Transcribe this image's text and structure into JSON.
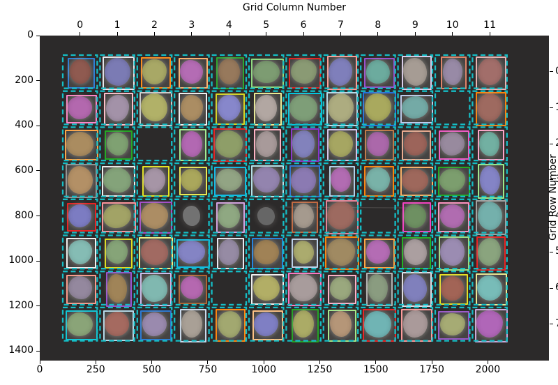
{
  "chart_data": {
    "type": "heatmap",
    "description": "Photograph of a seed packet board: 8 rows x 12 columns of seeds on a dark background. Each detected seed is tinted with a mask color and outlined with a bounding-box color; a cyan dashed grid marks the cells.",
    "top_axis": {
      "label": "Grid Column Number",
      "ticks": [
        0,
        1,
        2,
        3,
        4,
        5,
        6,
        7,
        8,
        9,
        10,
        11
      ]
    },
    "right_axis": {
      "label": "Grid Row Number",
      "ticks": [
        0,
        1,
        2,
        3,
        4,
        5,
        6,
        7
      ]
    },
    "left_axis": {
      "ticks": [
        0,
        200,
        400,
        600,
        800,
        1000,
        1200,
        1400
      ]
    },
    "bottom_axis": {
      "ticks": [
        0,
        250,
        500,
        750,
        1000,
        1250,
        1500,
        1750,
        2000
      ]
    },
    "n_rows": 8,
    "n_cols": 12,
    "image_bg": "#2c2a2a",
    "grid_line_color": "#15bdc5",
    "cells": [
      [
        [
          "#8f5a50",
          "#2f7fd6"
        ],
        [
          "#7b7bb4",
          "#e8e8ee"
        ],
        [
          "#a8a866",
          "#ff8c1a"
        ],
        [
          "#b46cb4",
          "#ffb26e"
        ],
        [
          "#97795c",
          "#2ea82e"
        ],
        [
          "#7d9c72",
          "#8fdc7f"
        ],
        [
          "#8a9a74",
          "#e42222"
        ],
        [
          "#7f7fbb",
          "#ff9e96"
        ],
        [
          "#6cab9e",
          "#9a4fd0"
        ],
        [
          "#a69c94",
          "#ddd0ee"
        ],
        [
          "#988aa6",
          "#e08468"
        ],
        [
          "#a26e6a",
          "#eab4b4"
        ]
      ],
      [
        [
          "#b368ae",
          "#ff85c8"
        ],
        [
          "#a392a8",
          "#ffc0cc"
        ],
        [
          "#b1b168",
          "#cccccc"
        ],
        [
          "#ab8d63",
          "#f2f2f2"
        ],
        [
          "#8787cb",
          "#d6d622"
        ],
        [
          "#b2a7a2",
          "#ecec94"
        ],
        [
          "#7e9e78",
          "#00c8e0"
        ],
        [
          "#adac80",
          "#b6dcec"
        ],
        [
          "#a9a95e",
          "#2472dc"
        ],
        [
          "#74aaa6",
          "#bcccee"
        ],
        null,
        [
          "#9e6a60",
          "#ff8408"
        ]
      ],
      [
        [
          "#aa8c60",
          "#ffa646"
        ],
        [
          "#7fa172",
          "#24a824"
        ],
        null,
        [
          "#b268b2",
          "#a4ec92"
        ],
        [
          "#8e9e68",
          "#e42424"
        ],
        [
          "#a89a9a",
          "#ffb2c4"
        ],
        [
          "#8282bc",
          "#8a35cc"
        ],
        [
          "#a6a662",
          "#d4c4ec"
        ],
        [
          "#ab68aa",
          "#c07a48"
        ],
        [
          "#9c645a",
          "#ecac90"
        ],
        [
          "#988a9e",
          "#f25cc6"
        ],
        [
          "#72b0a2",
          "#ffa4ca"
        ]
      ],
      [
        [
          "#b39066",
          "#939393"
        ],
        [
          "#84a37a",
          "#f0f0f0"
        ],
        [
          "#a695a6",
          "#e6e622"
        ],
        [
          "#aaa75c",
          "#eaea52"
        ],
        [
          "#92a484",
          "#10bce8"
        ],
        [
          "#9384ae",
          "#b4e2ea"
        ],
        [
          "#8b7ab2",
          "#3474d2"
        ],
        [
          "#b26cb2",
          "#b2d2ea"
        ],
        [
          "#79b2a8",
          "#ff8408"
        ],
        [
          "#9e685c",
          "#ffb264"
        ],
        [
          "#7c9e6e",
          "#22aa22"
        ],
        [
          "#8484c6",
          "#9cec8a"
        ]
      ],
      [
        [
          "#7c7cc2",
          "#ea2222"
        ],
        [
          "#a2a366",
          "#ff949c"
        ],
        [
          "#ac8d64",
          "#a44eca"
        ],
        [
          "#8a8a8a",
          null
        ],
        [
          "#8fa882",
          "#d4a2e2"
        ],
        [
          "#7a7a7a",
          null
        ],
        [
          "#a59a8e",
          "#c26a42"
        ],
        [
          "#9d6a60",
          "#ea8298"
        ],
        null,
        [
          "#6e9062",
          "#f442c2"
        ],
        [
          "#b06cb0",
          "#ff92c2"
        ],
        [
          "#74b0ac",
          "#a2a2a2"
        ]
      ],
      [
        [
          "#85bcb4",
          "#f0f0f0"
        ],
        [
          "#86a478",
          "#dede22"
        ],
        [
          "#a16a62",
          "#f0f084"
        ],
        [
          "#8484c4",
          "#10bce2"
        ],
        [
          "#968ba4",
          "#eaeaf2"
        ],
        [
          "#a08256",
          "#2484e2"
        ],
        [
          "#abab6e",
          "#bcd2ea"
        ],
        [
          "#a08a62",
          "#ff8408"
        ],
        [
          "#b46cb4",
          "#ffa642"
        ],
        [
          "#ab9fa0",
          "#22b222"
        ],
        [
          "#9b8cb2",
          "#9ce282"
        ],
        [
          "#8aa47e",
          "#ea2222"
        ]
      ],
      [
        [
          "#94889e",
          "#ff9a8a"
        ],
        [
          "#a08458",
          "#9a52d2"
        ],
        [
          "#80b8b0",
          "#ccbcec"
        ],
        [
          "#b568b0",
          "#b26432"
        ],
        null,
        [
          "#b2ae66",
          "#f2f2f2"
        ],
        [
          "#a89c9c",
          "#ff74c2"
        ],
        [
          "#9aa87e",
          "#ffb2ca"
        ],
        [
          "#8a9c80",
          "#b2b2b2"
        ],
        [
          "#8080bc",
          "#e2e2ea"
        ],
        [
          "#a26456",
          "#e8e022"
        ],
        [
          "#78bcb8",
          "#ecec94"
        ]
      ],
      [
        [
          "#8aa478",
          "#12c8d8"
        ],
        [
          "#a56a60",
          "#b4daea"
        ],
        [
          "#9a8aae",
          "#2c7ad2"
        ],
        [
          "#a9a096",
          "#cadaec"
        ],
        [
          "#a2a870",
          "#ff860e"
        ],
        [
          "#7f7fc4",
          "#ffc284"
        ],
        [
          "#abab66",
          "#24a424"
        ],
        [
          "#b59678",
          "#a4ea8a"
        ],
        [
          "#70b4b4",
          "#ea2424"
        ],
        [
          "#aa9a9a",
          "#ff9a9a"
        ],
        [
          "#a6ab74",
          "#9c5aca"
        ],
        [
          "#b066b8",
          "#cca8da"
        ]
      ]
    ]
  }
}
